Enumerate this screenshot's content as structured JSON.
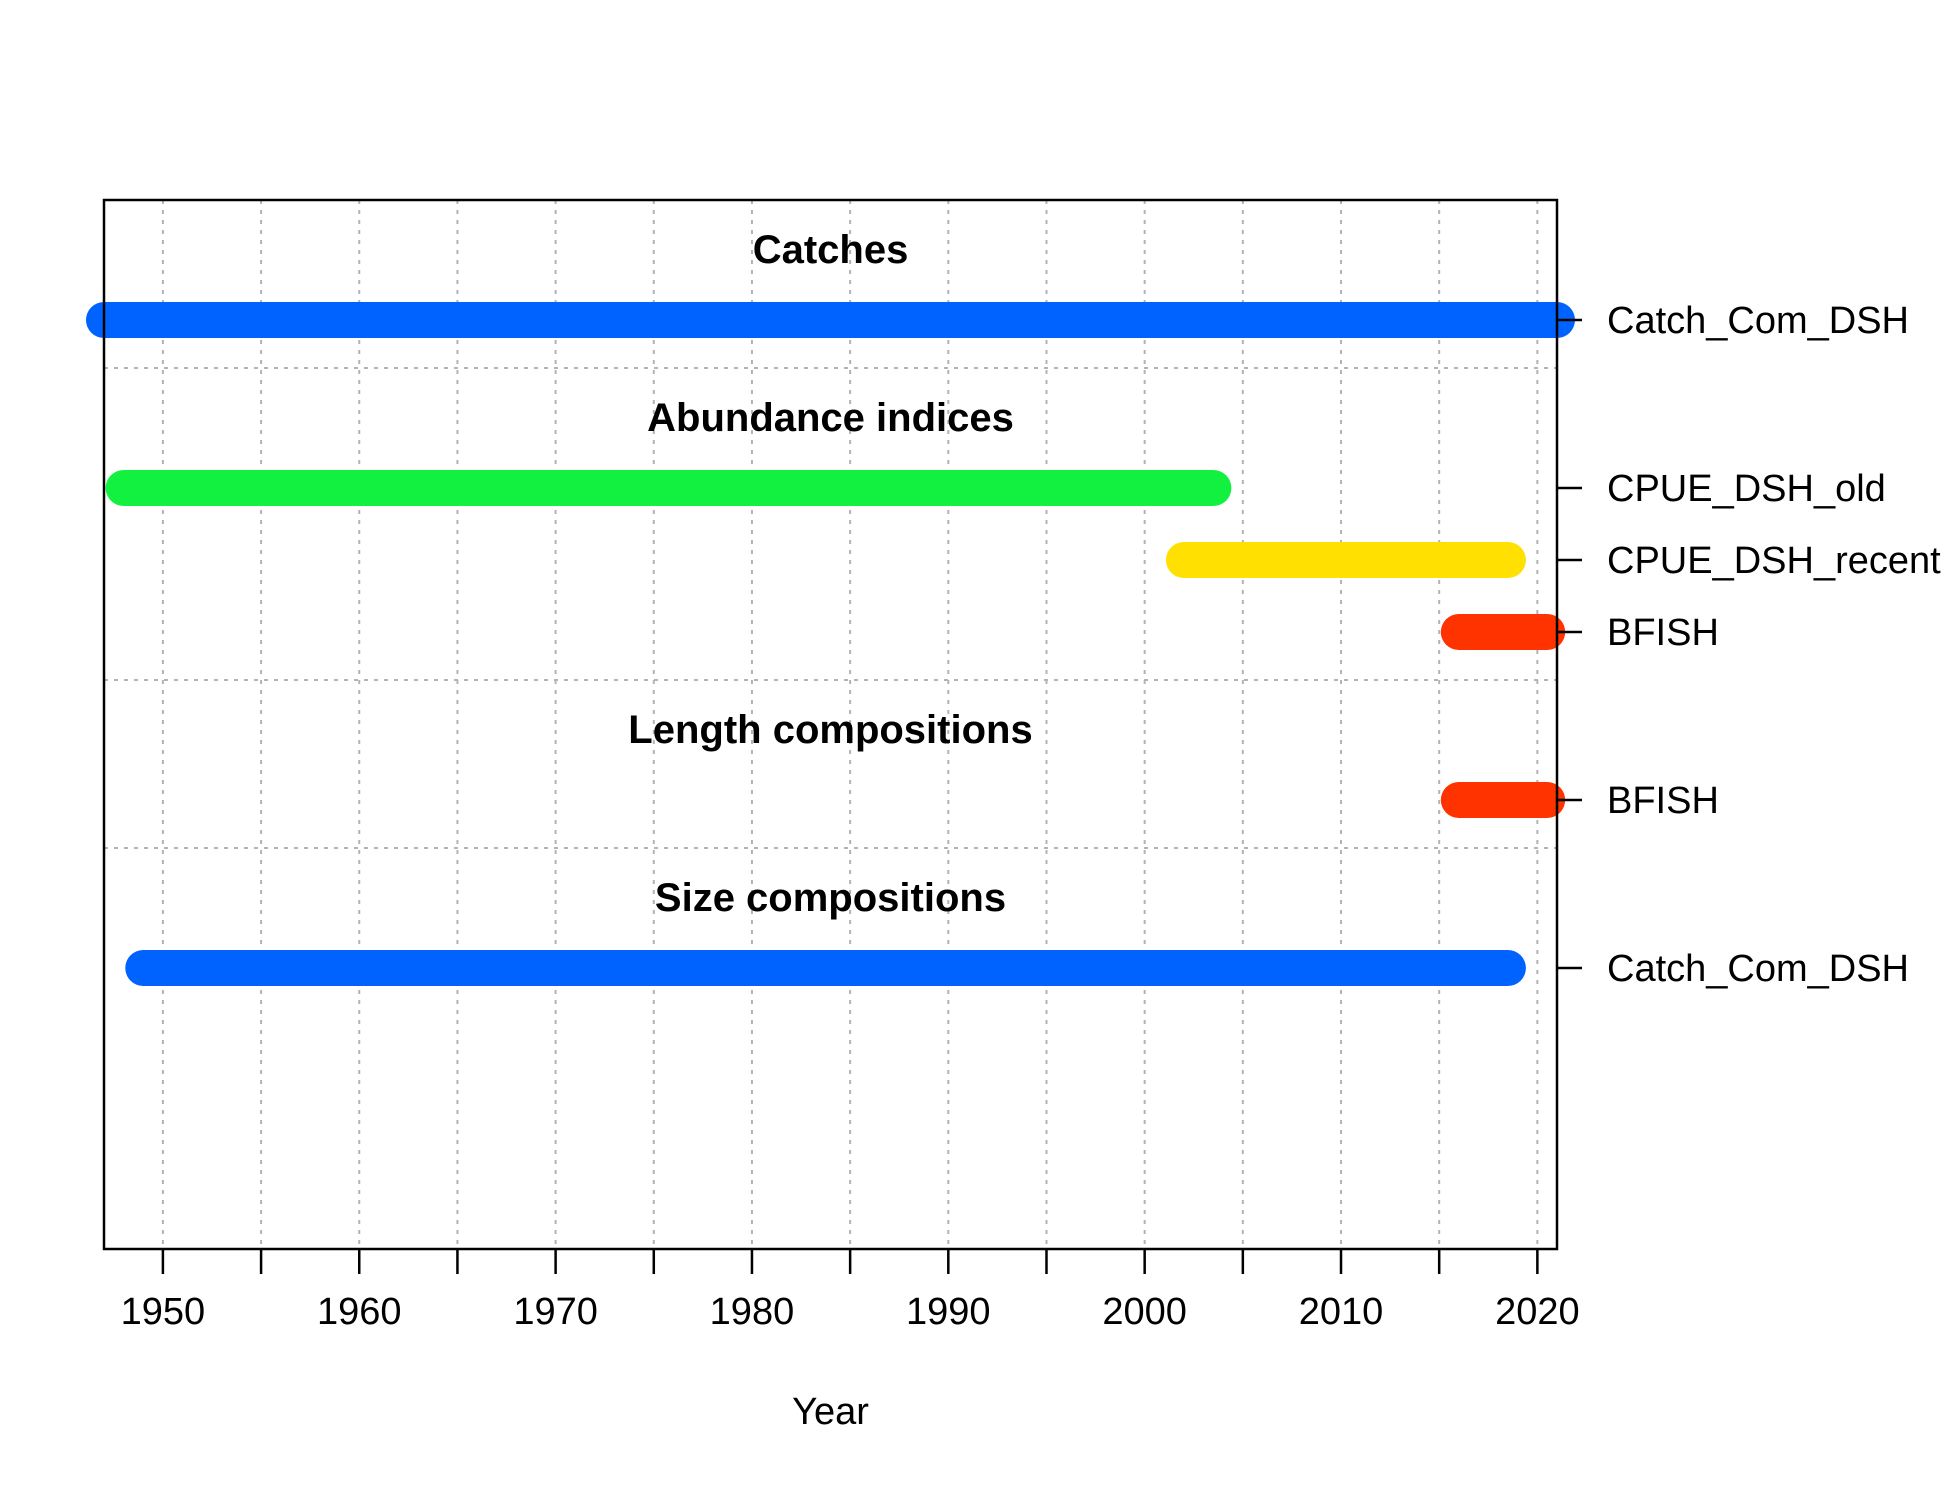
{
  "chart_data": {
    "type": "timeline",
    "xlabel": "Year",
    "xlim": [
      1947,
      2021
    ],
    "x_ticks": [
      1950,
      1955,
      1960,
      1965,
      1970,
      1975,
      1980,
      1985,
      1990,
      1995,
      2000,
      2005,
      2010,
      2015,
      2020
    ],
    "x_tick_labels": [
      "1950",
      "1960",
      "1970",
      "1980",
      "1990",
      "2000",
      "2010",
      "2020"
    ],
    "grid": true,
    "groups": [
      {
        "title": "Catches",
        "rows": [
          {
            "label": "Catch_Com_DSH",
            "start": 1947,
            "end": 2021,
            "color": "#0063FF"
          }
        ]
      },
      {
        "title": "Abundance indices",
        "rows": [
          {
            "label": "CPUE_DSH_old",
            "start": 1948,
            "end": 2003.5,
            "color": "#12F040"
          },
          {
            "label": "CPUE_DSH_recent",
            "start": 2002,
            "end": 2018.5,
            "color": "#FFE000"
          },
          {
            "label": "BFISH",
            "start": 2016,
            "end": 2020.5,
            "color": "#FF3300"
          }
        ]
      },
      {
        "title": "Length compositions",
        "rows": [
          {
            "label": "BFISH",
            "start": 2016,
            "end": 2020.5,
            "color": "#FF3300"
          }
        ]
      },
      {
        "title": "Size compositions",
        "rows": [
          {
            "label": "Catch_Com_DSH",
            "start": 1949,
            "end": 2018.5,
            "color": "#0063FF"
          }
        ]
      }
    ]
  }
}
